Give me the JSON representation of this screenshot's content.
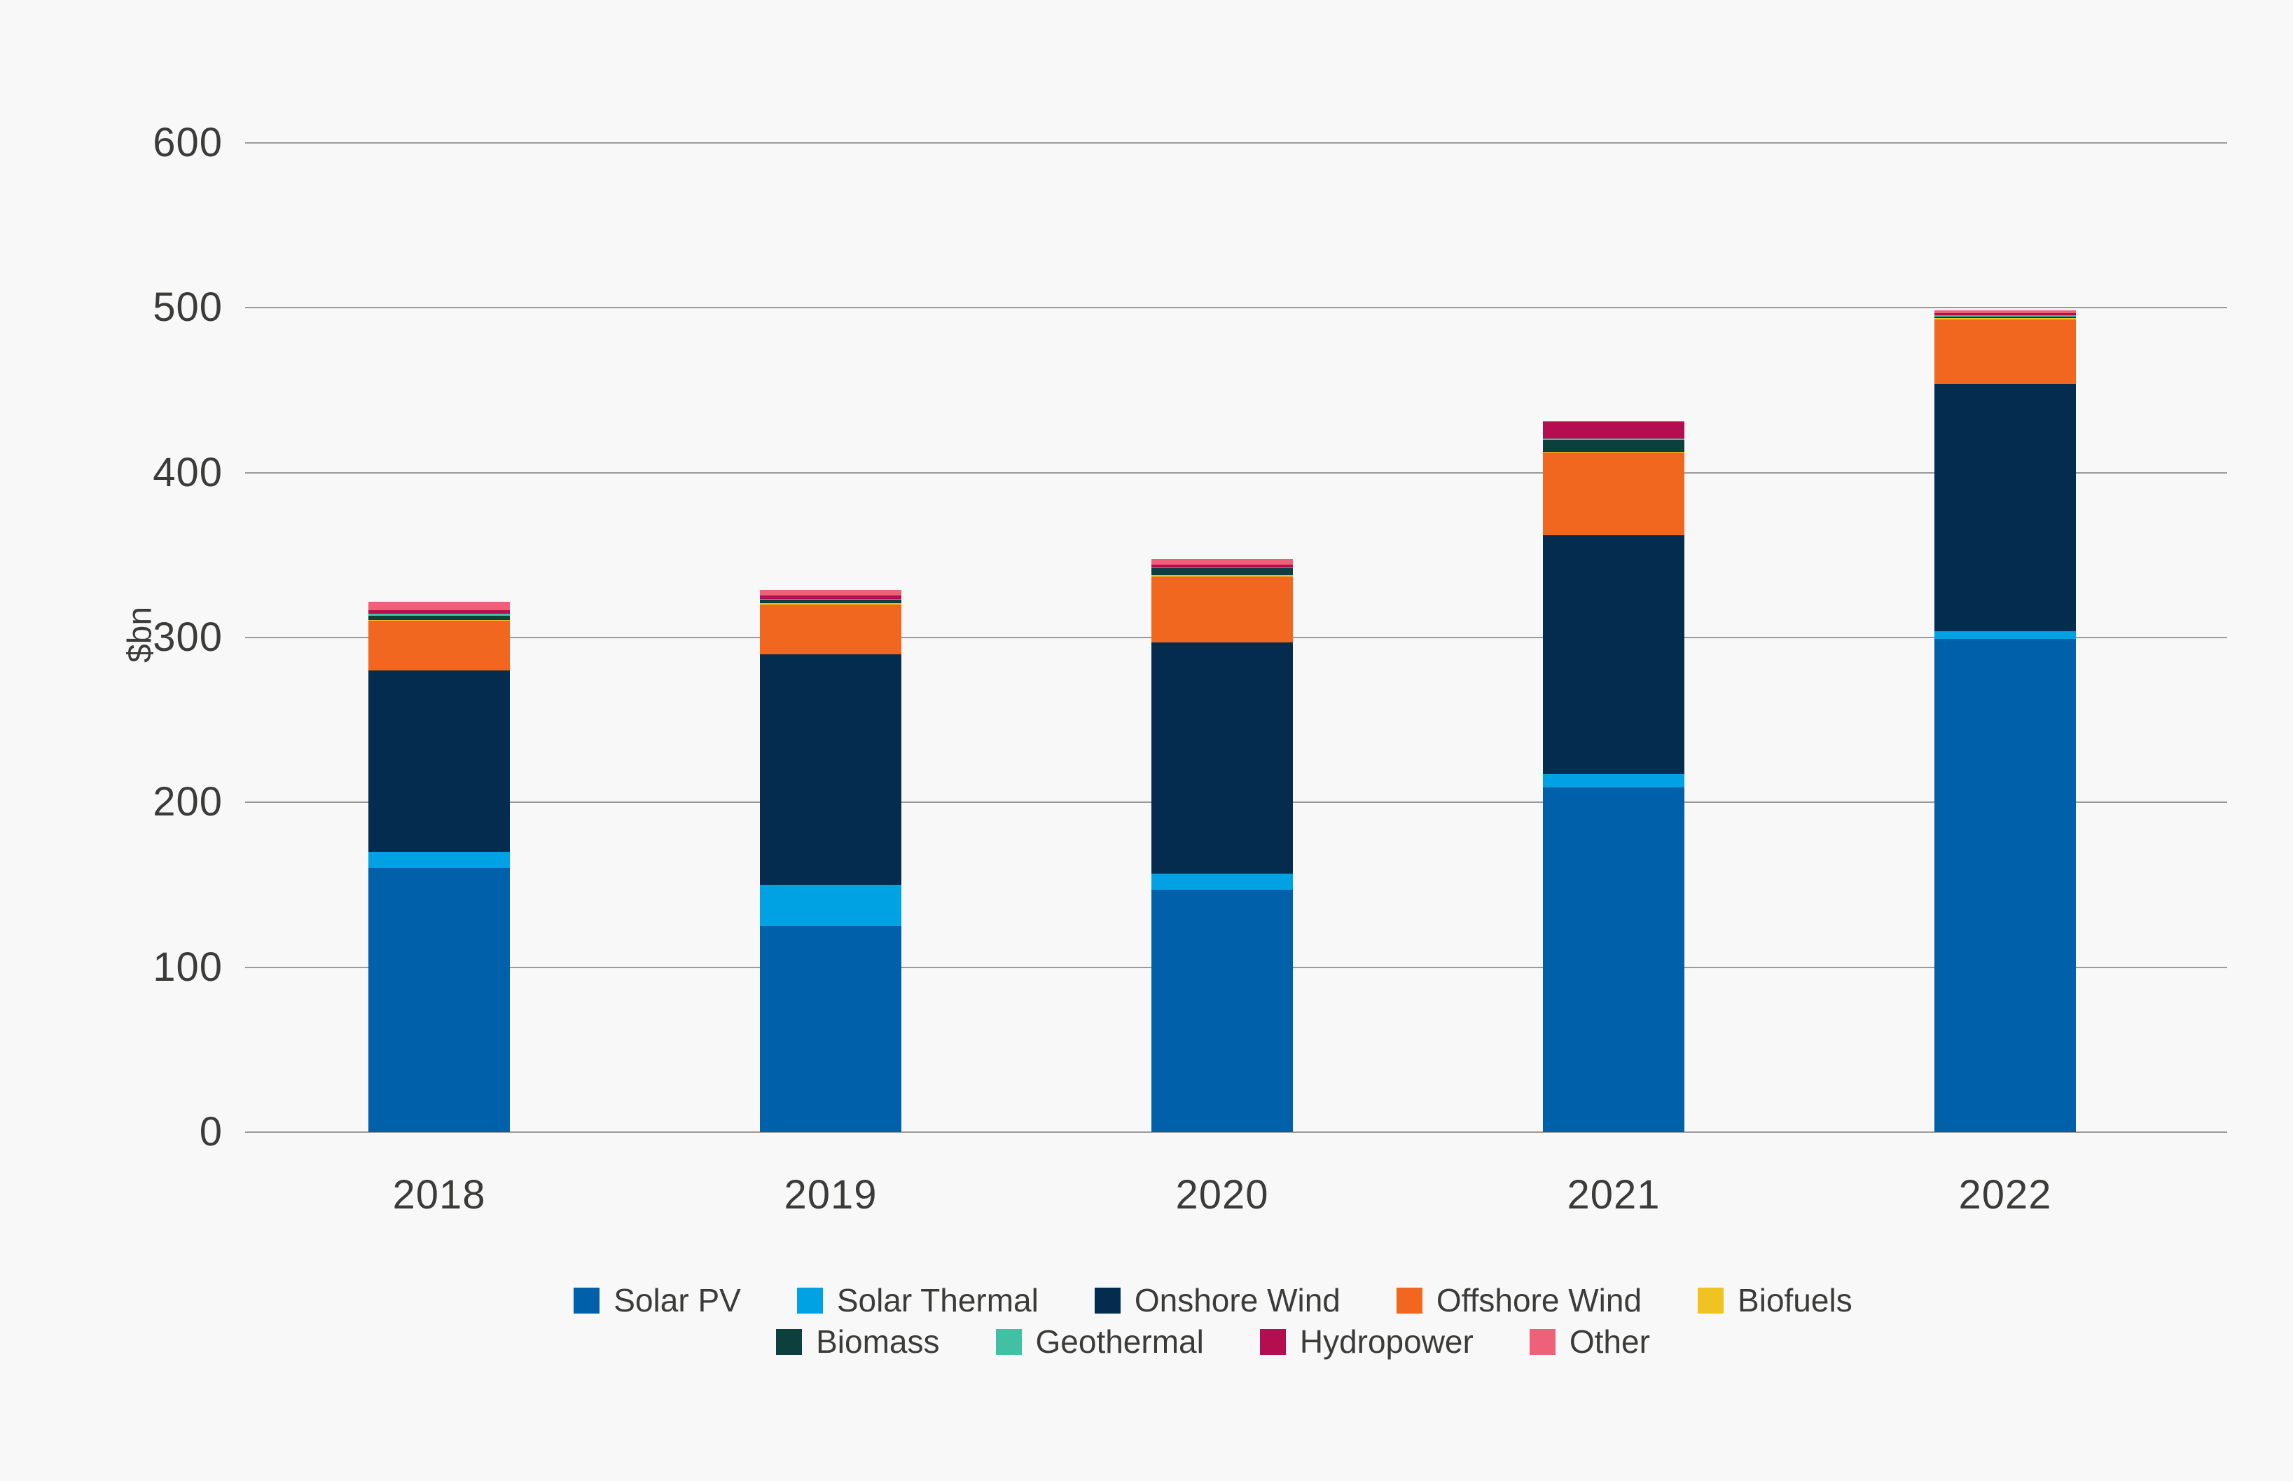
{
  "chart_data": {
    "type": "bar",
    "stacked": true,
    "title": "",
    "xlabel": "",
    "ylabel": "$bn",
    "categories": [
      "2018",
      "2019",
      "2020",
      "2021",
      "2022"
    ],
    "series": [
      {
        "name": "Solar PV",
        "color": "#0060A9",
        "values": [
          160,
          125,
          147,
          209,
          299
        ]
      },
      {
        "name": "Solar Thermal",
        "color": "#00A2E3",
        "values": [
          10,
          25,
          10,
          8,
          5
        ]
      },
      {
        "name": "Onshore Wind",
        "color": "#032C4F",
        "values": [
          110,
          140,
          140,
          145,
          150
        ]
      },
      {
        "name": "Offshore Wind",
        "color": "#F2671F",
        "values": [
          30,
          30,
          40,
          50,
          39
        ]
      },
      {
        "name": "Biofuels",
        "color": "#EFC320",
        "values": [
          0.5,
          0.7,
          1,
          0.7,
          0.7
        ]
      },
      {
        "name": "Biomass",
        "color": "#0B403D",
        "values": [
          2.5,
          2.3,
          4,
          7,
          0.8
        ]
      },
      {
        "name": "Geothermal",
        "color": "#41C0A4",
        "values": [
          1.5,
          0.5,
          0.7,
          1,
          1.1
        ]
      },
      {
        "name": "Hydropower",
        "color": "#B50E50",
        "values": [
          2,
          2,
          1.7,
          10,
          1.3
        ]
      },
      {
        "name": "Other",
        "color": "#EF6179",
        "values": [
          5,
          3.5,
          3.4,
          0.5,
          1.7
        ]
      }
    ],
    "yaxis": {
      "min": 0,
      "max": 600,
      "step": 100,
      "ticks": [
        0,
        100,
        200,
        300,
        400,
        500,
        600
      ]
    },
    "legend_rows": [
      [
        "Solar PV",
        "Solar Thermal",
        "Onshore Wind",
        "Offshore Wind",
        "Biofuels"
      ],
      [
        "Biomass",
        "Geothermal",
        "Hydropower",
        "Other"
      ]
    ],
    "grid": true,
    "legend_position": "bottom"
  },
  "colors": {
    "background": "#F8F8F8",
    "gridline": "#9B9B9B",
    "text": "#3B3B3A"
  }
}
